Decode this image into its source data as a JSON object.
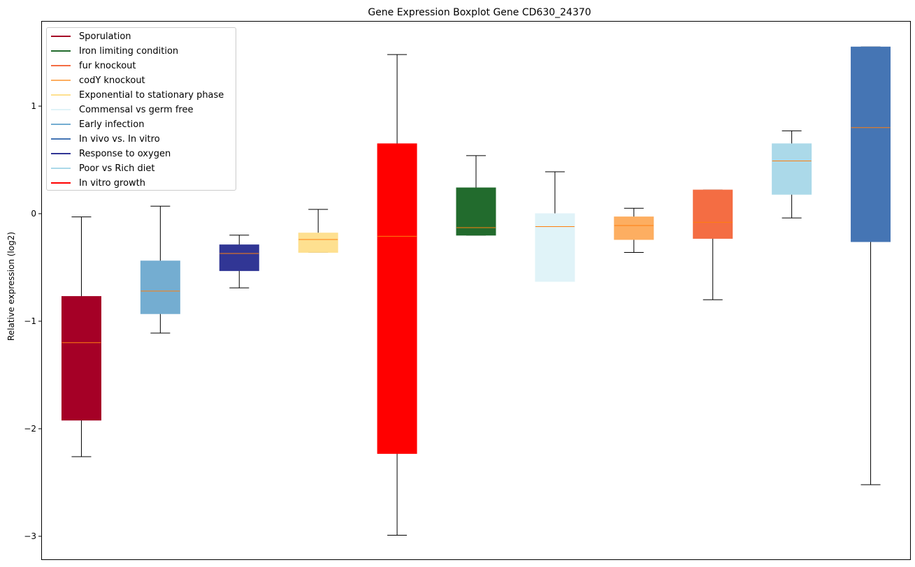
{
  "chart_data": {
    "type": "box",
    "title": "Gene Expression Boxplot Gene CD630_24370",
    "xlabel": "",
    "ylabel": "Relative expression (log2)",
    "ylim": [
      -3.2,
      1.8
    ],
    "yticks": [
      -3,
      -2,
      -1,
      0,
      1
    ],
    "ytick_labels": [
      "−3",
      "−2",
      "−1",
      "0",
      "1"
    ],
    "median_color": "#ff7f0e",
    "boxes": [
      {
        "color": "#a50026",
        "whisker_low": -2.26,
        "q1": -1.92,
        "median": -1.2,
        "q3": -0.77,
        "whisker_high": -0.03
      },
      {
        "color": "#74add1",
        "whisker_low": -1.11,
        "q1": -0.93,
        "median": -0.72,
        "q3": -0.44,
        "whisker_high": 0.07
      },
      {
        "color": "#313695",
        "whisker_low": -0.69,
        "q1": -0.53,
        "median": -0.37,
        "q3": -0.29,
        "whisker_high": -0.2
      },
      {
        "color": "#fee090",
        "whisker_low": -0.36,
        "q1": -0.36,
        "median": -0.24,
        "q3": -0.18,
        "whisker_high": 0.04
      },
      {
        "color": "#ff0000",
        "whisker_low": -2.99,
        "q1": -2.23,
        "median": -0.21,
        "q3": 0.65,
        "whisker_high": 1.48
      },
      {
        "color": "#226b2d",
        "whisker_low": -0.2,
        "q1": -0.2,
        "median": -0.13,
        "q3": 0.24,
        "whisker_high": 0.54
      },
      {
        "color": "#e0f3f8",
        "whisker_low": -0.63,
        "q1": -0.63,
        "median": -0.12,
        "q3": 0.0,
        "whisker_high": 0.39
      },
      {
        "color": "#fdae61",
        "whisker_low": -0.36,
        "q1": -0.24,
        "median": -0.11,
        "q3": -0.03,
        "whisker_high": 0.05
      },
      {
        "color": "#f46d43",
        "whisker_low": -0.8,
        "q1": -0.23,
        "median": -0.08,
        "q3": 0.22,
        "whisker_high": 0.22
      },
      {
        "color": "#abd9e9",
        "whisker_low": -0.04,
        "q1": 0.18,
        "median": 0.49,
        "q3": 0.65,
        "whisker_high": 0.77
      },
      {
        "color": "#4575b4",
        "whisker_low": -2.52,
        "q1": -0.26,
        "median": 0.8,
        "q3": 1.55,
        "whisker_high": 1.55
      }
    ],
    "legend": {
      "position": "upper-left",
      "entries": [
        {
          "label": "Sporulation",
          "color": "#a50026"
        },
        {
          "label": "Iron limiting condition",
          "color": "#226b2d"
        },
        {
          "label": "fur knockout",
          "color": "#f46d43"
        },
        {
          "label": "codY knockout",
          "color": "#fdae61"
        },
        {
          "label": "Exponential to stationary phase",
          "color": "#fee090"
        },
        {
          "label": "Commensal vs germ free",
          "color": "#e0f3f8"
        },
        {
          "label": "Early infection",
          "color": "#74add1"
        },
        {
          "label": "In vivo vs. In vitro",
          "color": "#4575b4"
        },
        {
          "label": "Response to oxygen",
          "color": "#313695"
        },
        {
          "label": "Poor vs Rich diet",
          "color": "#abd9e9"
        },
        {
          "label": "In vitro growth",
          "color": "#ff0000"
        }
      ]
    }
  }
}
